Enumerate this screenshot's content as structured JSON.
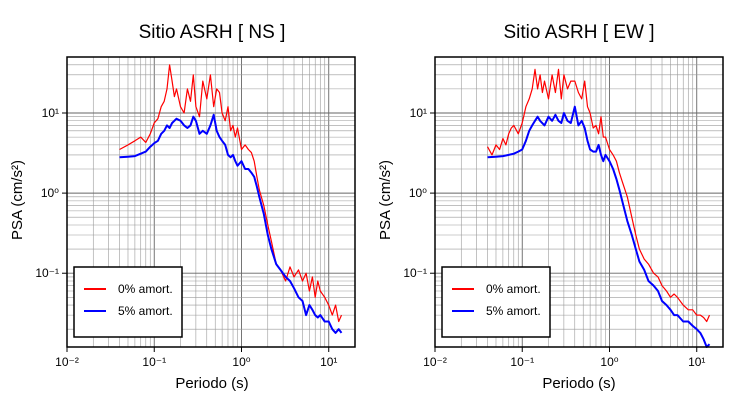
{
  "chart_data": [
    {
      "type": "line",
      "title": "Sitio ASRH [ NS ]",
      "xlabel": "Periodo (s)",
      "ylabel": "PSA (cm/s²)",
      "xscale": "log",
      "yscale": "log",
      "xlim": [
        0.01,
        20
      ],
      "ylim": [
        0.012,
        50
      ],
      "grid": true,
      "legend": "bottom-left",
      "x_ticks": [
        "10⁻²",
        "10⁻¹",
        "10⁰",
        "10¹"
      ],
      "y_ticks": [
        "10⁻¹",
        "10⁰",
        "10¹"
      ],
      "series": [
        {
          "name": "0% amort.",
          "color": "#ff0000",
          "x": [
            0.04,
            0.05,
            0.06,
            0.07,
            0.08,
            0.09,
            0.1,
            0.11,
            0.12,
            0.13,
            0.14,
            0.15,
            0.16,
            0.17,
            0.18,
            0.2,
            0.22,
            0.24,
            0.26,
            0.28,
            0.3,
            0.33,
            0.36,
            0.4,
            0.44,
            0.48,
            0.52,
            0.56,
            0.6,
            0.65,
            0.7,
            0.75,
            0.8,
            0.85,
            0.9,
            1.0,
            1.1,
            1.2,
            1.3,
            1.4,
            1.5,
            1.6,
            1.8,
            2.0,
            2.2,
            2.5,
            2.8,
            3.2,
            3.6,
            4.0,
            4.5,
            5.0,
            5.5,
            6.0,
            6.5,
            7.0,
            7.5,
            8.0,
            9.0,
            10.0,
            11.0,
            12.0,
            13.0,
            14.0
          ],
          "y": [
            3.5,
            4.0,
            4.5,
            5.0,
            4.3,
            5.5,
            7.5,
            8.5,
            12.0,
            14.0,
            20.0,
            40.0,
            25.0,
            16.0,
            20.0,
            12.0,
            10.0,
            20.0,
            14.0,
            30.0,
            12.0,
            9.0,
            25.0,
            15.0,
            30.0,
            12.0,
            20.0,
            18.0,
            10.0,
            8.0,
            12.0,
            6.0,
            7.0,
            5.0,
            6.5,
            3.5,
            4.0,
            3.5,
            3.2,
            2.5,
            1.6,
            1.1,
            0.7,
            0.4,
            0.25,
            0.13,
            0.11,
            0.08,
            0.12,
            0.09,
            0.11,
            0.08,
            0.1,
            0.06,
            0.09,
            0.05,
            0.08,
            0.06,
            0.05,
            0.04,
            0.03,
            0.04,
            0.025,
            0.03
          ]
        },
        {
          "name": "5% amort.",
          "color": "#0000ff",
          "x": [
            0.04,
            0.05,
            0.06,
            0.07,
            0.08,
            0.09,
            0.1,
            0.11,
            0.12,
            0.13,
            0.14,
            0.15,
            0.16,
            0.18,
            0.2,
            0.22,
            0.24,
            0.26,
            0.28,
            0.3,
            0.33,
            0.36,
            0.4,
            0.44,
            0.48,
            0.52,
            0.56,
            0.6,
            0.65,
            0.7,
            0.75,
            0.8,
            0.85,
            0.9,
            1.0,
            1.1,
            1.2,
            1.3,
            1.4,
            1.5,
            1.6,
            1.8,
            2.0,
            2.2,
            2.5,
            2.8,
            3.2,
            3.6,
            4.0,
            4.5,
            5.0,
            5.5,
            6.0,
            6.5,
            7.0,
            7.5,
            8.0,
            9.0,
            10.0,
            11.0,
            12.0,
            13.0,
            14.0
          ],
          "y": [
            2.8,
            2.85,
            2.9,
            3.1,
            3.3,
            3.8,
            4.2,
            4.5,
            5.5,
            6.0,
            7.0,
            6.5,
            7.5,
            8.5,
            8.0,
            7.0,
            6.5,
            7.0,
            9.0,
            8.0,
            5.5,
            6.0,
            5.5,
            7.0,
            9.5,
            6.0,
            5.0,
            4.5,
            4.0,
            3.0,
            2.8,
            3.0,
            2.5,
            2.2,
            2.5,
            2.0,
            2.0,
            1.8,
            1.6,
            1.2,
            0.9,
            0.55,
            0.3,
            0.2,
            0.13,
            0.11,
            0.09,
            0.08,
            0.065,
            0.05,
            0.045,
            0.03,
            0.04,
            0.035,
            0.03,
            0.028,
            0.03,
            0.025,
            0.025,
            0.02,
            0.018,
            0.02,
            0.018
          ]
        }
      ]
    },
    {
      "type": "line",
      "title": "Sitio ASRH [ EW ]",
      "xlabel": "Periodo (s)",
      "ylabel": "PSA (cm/s²)",
      "xscale": "log",
      "yscale": "log",
      "xlim": [
        0.01,
        20
      ],
      "ylim": [
        0.012,
        50
      ],
      "grid": true,
      "legend": "bottom-left",
      "x_ticks": [
        "10⁻²",
        "10⁻¹",
        "10⁰",
        "10¹"
      ],
      "y_ticks": [
        "10⁻¹",
        "10⁰",
        "10¹"
      ],
      "series": [
        {
          "name": "0% amort.",
          "color": "#ff0000",
          "x": [
            0.04,
            0.045,
            0.05,
            0.055,
            0.06,
            0.065,
            0.07,
            0.075,
            0.08,
            0.09,
            0.1,
            0.11,
            0.12,
            0.13,
            0.14,
            0.15,
            0.16,
            0.17,
            0.18,
            0.2,
            0.22,
            0.24,
            0.26,
            0.28,
            0.3,
            0.33,
            0.36,
            0.4,
            0.44,
            0.48,
            0.52,
            0.56,
            0.6,
            0.65,
            0.7,
            0.75,
            0.8,
            0.85,
            0.9,
            1.0,
            1.1,
            1.2,
            1.3,
            1.4,
            1.6,
            1.8,
            2.0,
            2.2,
            2.5,
            2.8,
            3.2,
            3.6,
            4.0,
            4.5,
            5.0,
            5.5,
            6.0,
            7.0,
            8.0,
            9.0,
            10.0,
            11.0,
            12.0,
            13.0,
            14.0
          ],
          "y": [
            3.8,
            3.0,
            4.0,
            3.5,
            4.8,
            4.0,
            5.5,
            6.5,
            7.0,
            5.5,
            7.5,
            12.0,
            15.0,
            20.0,
            35.0,
            20.0,
            30.0,
            18.0,
            25.0,
            15.0,
            30.0,
            18.0,
            35.0,
            15.0,
            30.0,
            20.0,
            25.0,
            25.0,
            18.0,
            15.0,
            25.0,
            12.0,
            10.0,
            6.5,
            7.0,
            5.5,
            9.0,
            5.0,
            5.0,
            3.5,
            3.0,
            2.5,
            1.8,
            1.4,
            0.9,
            0.5,
            0.3,
            0.2,
            0.15,
            0.13,
            0.1,
            0.09,
            0.07,
            0.06,
            0.05,
            0.055,
            0.05,
            0.04,
            0.035,
            0.035,
            0.03,
            0.03,
            0.028,
            0.025,
            0.03
          ]
        },
        {
          "name": "5% amort.",
          "color": "#0000ff",
          "x": [
            0.04,
            0.05,
            0.06,
            0.07,
            0.08,
            0.09,
            0.1,
            0.11,
            0.12,
            0.13,
            0.14,
            0.15,
            0.16,
            0.18,
            0.2,
            0.22,
            0.24,
            0.26,
            0.28,
            0.3,
            0.33,
            0.36,
            0.4,
            0.44,
            0.48,
            0.52,
            0.56,
            0.6,
            0.65,
            0.7,
            0.75,
            0.8,
            0.85,
            0.9,
            1.0,
            1.1,
            1.2,
            1.3,
            1.4,
            1.6,
            1.8,
            2.0,
            2.2,
            2.5,
            2.8,
            3.2,
            3.6,
            4.0,
            4.5,
            5.0,
            5.5,
            6.0,
            7.0,
            8.0,
            9.0,
            10.0,
            11.0,
            12.0,
            13.0,
            14.0
          ],
          "y": [
            2.8,
            2.85,
            2.9,
            3.0,
            3.1,
            3.3,
            3.5,
            4.5,
            6.0,
            7.0,
            8.0,
            9.0,
            8.0,
            7.0,
            9.0,
            8.0,
            9.5,
            8.0,
            7.5,
            10.0,
            8.0,
            7.5,
            12.0,
            7.0,
            8.0,
            6.5,
            4.5,
            3.5,
            3.3,
            3.3,
            4.0,
            3.0,
            2.5,
            3.0,
            2.5,
            2.0,
            1.5,
            1.1,
            0.8,
            0.45,
            0.3,
            0.2,
            0.14,
            0.11,
            0.08,
            0.07,
            0.06,
            0.045,
            0.04,
            0.035,
            0.03,
            0.03,
            0.025,
            0.025,
            0.022,
            0.02,
            0.018,
            0.015,
            0.012,
            0.013
          ]
        }
      ]
    }
  ]
}
